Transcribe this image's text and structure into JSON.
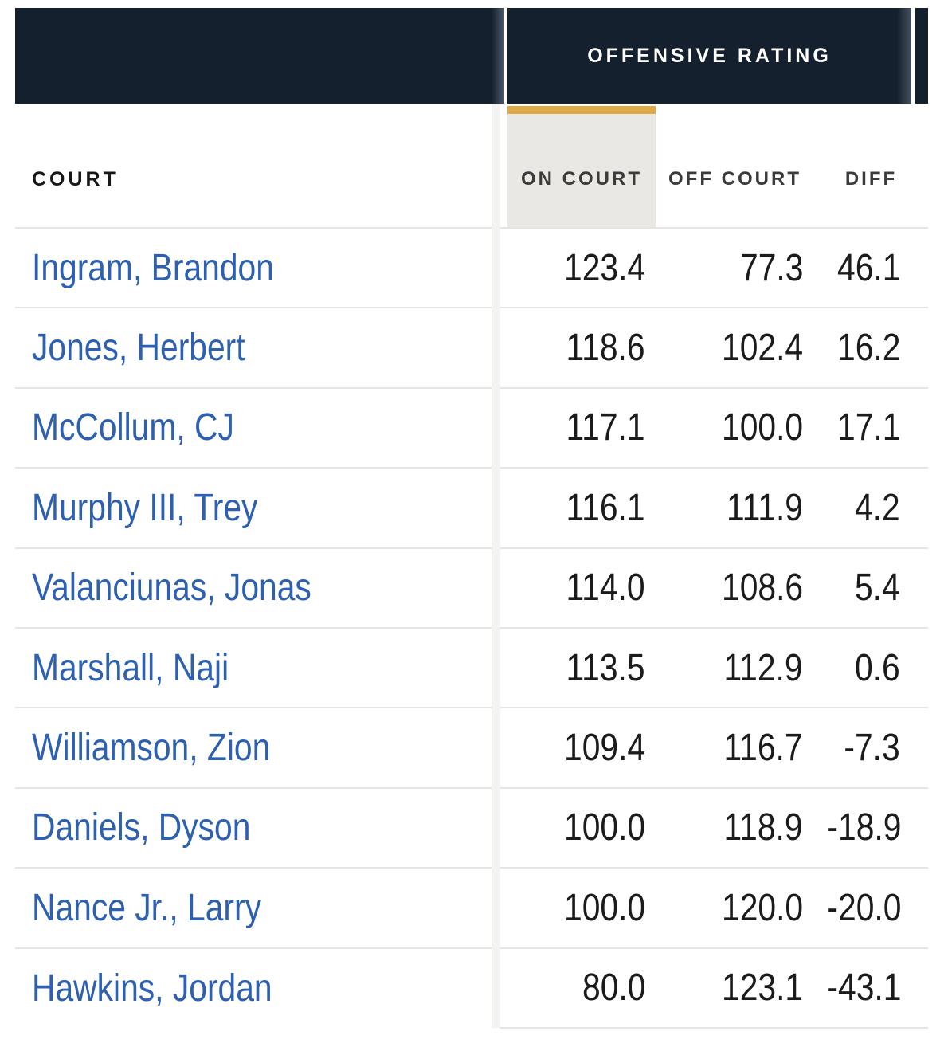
{
  "colors": {
    "header_navy": "#15202e",
    "sort_accent_gold": "#e0ab47",
    "sort_highlight_gray": "#e9e8e5",
    "player_link_blue": "#2d60b1",
    "value_text": "#1b1b1b",
    "separator": "#e6e5e3"
  },
  "table": {
    "group_header": "OFFENSIVE RATING",
    "frozen_header": "COURT",
    "columns": {
      "on": "ON COURT",
      "off": "OFF COURT",
      "diff": "DIFF"
    },
    "sorted_column": "ON COURT",
    "rows": [
      {
        "player": "Ingram, Brandon",
        "on": "123.4",
        "off": "77.3",
        "diff": "46.1"
      },
      {
        "player": "Jones, Herbert",
        "on": "118.6",
        "off": "102.4",
        "diff": "16.2"
      },
      {
        "player": "McCollum, CJ",
        "on": "117.1",
        "off": "100.0",
        "diff": "17.1"
      },
      {
        "player": "Murphy III, Trey",
        "on": "116.1",
        "off": "111.9",
        "diff": "4.2"
      },
      {
        "player": "Valanciunas, Jonas",
        "on": "114.0",
        "off": "108.6",
        "diff": "5.4"
      },
      {
        "player": "Marshall, Naji",
        "on": "113.5",
        "off": "112.9",
        "diff": "0.6"
      },
      {
        "player": "Williamson, Zion",
        "on": "109.4",
        "off": "116.7",
        "diff": "-7.3"
      },
      {
        "player": "Daniels, Dyson",
        "on": "100.0",
        "off": "118.9",
        "diff": "-18.9"
      },
      {
        "player": "Nance Jr., Larry",
        "on": "100.0",
        "off": "120.0",
        "diff": "-20.0"
      },
      {
        "player": "Hawkins, Jordan",
        "on": "80.0",
        "off": "123.1",
        "diff": "-43.1"
      }
    ]
  }
}
